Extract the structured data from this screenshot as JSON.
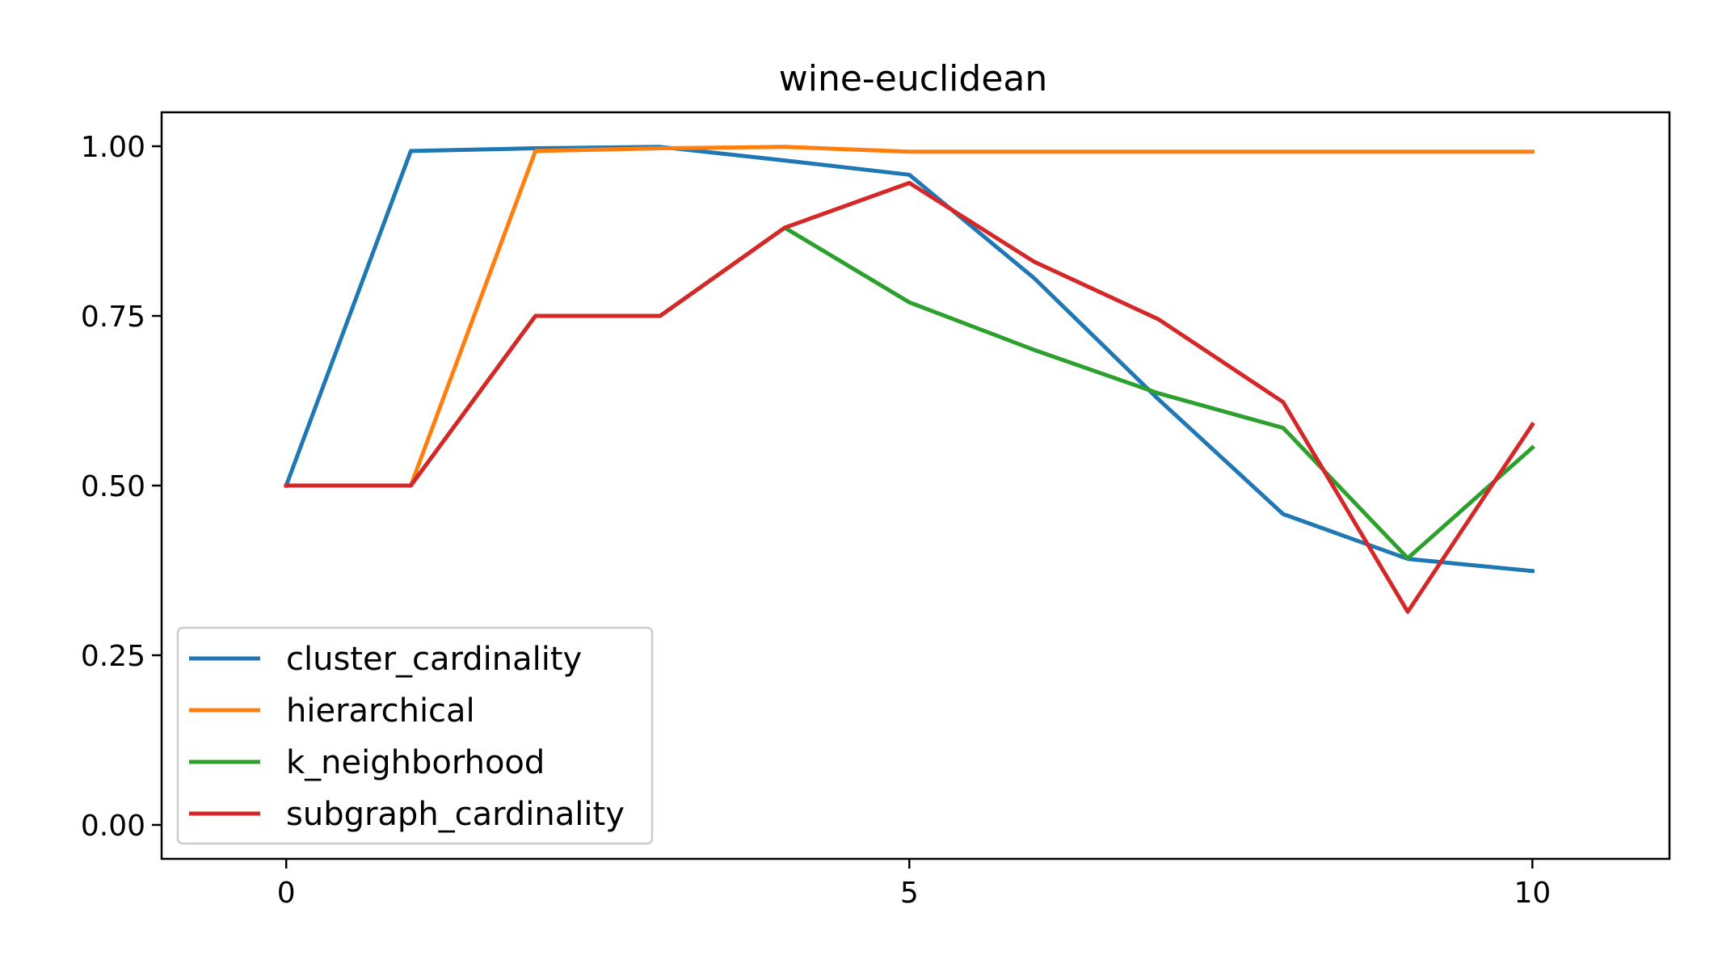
{
  "chart_data": {
    "type": "line",
    "title": "wine-euclidean",
    "xlabel": "",
    "ylabel": "",
    "xlim": [
      -1,
      11.1
    ],
    "ylim": [
      -0.05,
      1.05
    ],
    "x": [
      0,
      1,
      2,
      3,
      4,
      5,
      6,
      7,
      8,
      9,
      10
    ],
    "x_ticks": [
      0,
      5,
      10
    ],
    "x_tick_labels": [
      "0",
      "5",
      "10"
    ],
    "y_ticks": [
      0.0,
      0.25,
      0.5,
      0.75,
      1.0
    ],
    "y_tick_labels": [
      "0.00",
      "0.25",
      "0.50",
      "0.75",
      "1.00"
    ],
    "grid": false,
    "legend_position": "lower-left",
    "series": [
      {
        "name": "cluster_cardinality",
        "color": "#1f77b4",
        "values": [
          0.5,
          0.993,
          0.997,
          0.999,
          0.979,
          0.958,
          0.806,
          0.627,
          0.458,
          0.392,
          0.374
        ]
      },
      {
        "name": "hierarchical",
        "color": "#ff7f0e",
        "values": [
          0.5,
          0.5,
          0.993,
          0.997,
          0.999,
          0.992,
          0.992,
          0.992,
          0.992,
          0.992,
          0.992
        ]
      },
      {
        "name": "k_neighborhood",
        "color": "#2ca02c",
        "values": [
          0.5,
          0.5,
          0.75,
          0.75,
          0.88,
          0.77,
          0.7,
          0.636,
          0.585,
          0.393,
          0.556
        ]
      },
      {
        "name": "subgraph_cardinality",
        "color": "#d62728",
        "values": [
          0.5,
          0.5,
          0.75,
          0.75,
          0.88,
          0.946,
          0.83,
          0.745,
          0.623,
          0.314,
          0.59
        ]
      }
    ]
  }
}
